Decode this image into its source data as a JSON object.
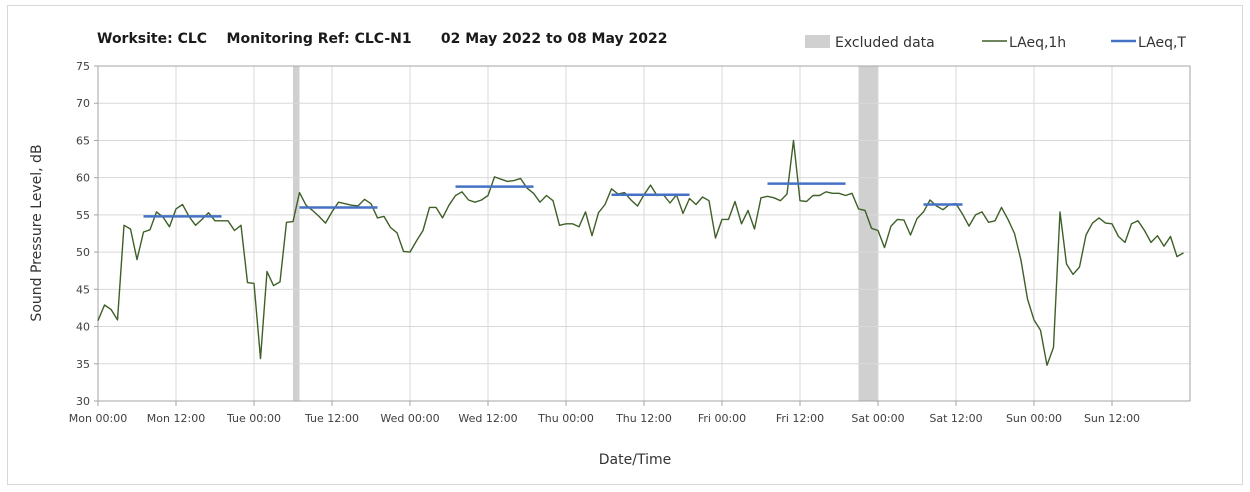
{
  "chart_data": {
    "type": "line",
    "title": "Worksite: CLC    Monitoring Ref: CLC-N1      02 May 2022 to 08 May 2022",
    "xlabel": "Date/Time",
    "ylabel": "Sound Pressure Level, dB",
    "xlim": [
      "2022-05-02 00:00",
      "2022-05-09 00:00"
    ],
    "ylim": [
      30,
      75
    ],
    "y_ticks": [
      30,
      35,
      40,
      45,
      50,
      55,
      60,
      65,
      70,
      75
    ],
    "x_ticks": [
      {
        "at": "2022-05-02 00:00",
        "label": "Mon 00:00"
      },
      {
        "at": "2022-05-02 12:00",
        "label": "Mon 12:00"
      },
      {
        "at": "2022-05-03 00:00",
        "label": "Tue 00:00"
      },
      {
        "at": "2022-05-03 12:00",
        "label": "Tue 12:00"
      },
      {
        "at": "2022-05-04 00:00",
        "label": "Wed 00:00"
      },
      {
        "at": "2022-05-04 12:00",
        "label": "Wed 12:00"
      },
      {
        "at": "2022-05-05 00:00",
        "label": "Thu 00:00"
      },
      {
        "at": "2022-05-05 12:00",
        "label": "Thu 12:00"
      },
      {
        "at": "2022-05-06 00:00",
        "label": "Fri 00:00"
      },
      {
        "at": "2022-05-06 12:00",
        "label": "Fri 12:00"
      },
      {
        "at": "2022-05-07 00:00",
        "label": "Sat 00:00"
      },
      {
        "at": "2022-05-07 12:00",
        "label": "Sat 12:00"
      },
      {
        "at": "2022-05-08 00:00",
        "label": "Sun 00:00"
      },
      {
        "at": "2022-05-08 12:00",
        "label": "Sun 12:00"
      }
    ],
    "grid": true,
    "legend_position": "top-right",
    "colors": {
      "laeq_1h": "#3f5f28",
      "laeq_t": "#4472c4",
      "excluded": "#d0d0d0",
      "grid": "#d9d9d9",
      "axis": "#a6a6a6"
    },
    "excluded_ranges": [
      {
        "start": "2022-05-03 06:00",
        "end": "2022-05-03 07:00",
        "label": "Excluded data"
      },
      {
        "start": "2022-05-06 21:00",
        "end": "2022-05-07 00:00"
      }
    ],
    "series": [
      {
        "name": "LAeq,1h",
        "kind": "line",
        "start": "2022-05-02 00:00",
        "step_hours": 1,
        "values": [
          40.8,
          42.9,
          42.3,
          40.9,
          53.6,
          53.1,
          49.0,
          52.7,
          53.0,
          55.4,
          54.7,
          53.4,
          55.8,
          56.4,
          54.8,
          53.6,
          54.4,
          55.3,
          54.2,
          54.2,
          54.2,
          52.9,
          53.6,
          45.9,
          45.8,
          35.7,
          47.4,
          45.5,
          46.0,
          54.0,
          54.1,
          58.0,
          56.3,
          55.6,
          54.8,
          53.9,
          55.4,
          56.7,
          56.5,
          56.3,
          56.2,
          57.1,
          56.5,
          54.6,
          54.8,
          53.3,
          52.6,
          50.1,
          50.0,
          51.5,
          52.9,
          56.0,
          56.0,
          54.6,
          56.3,
          57.6,
          58.1,
          57.0,
          56.7,
          57.0,
          57.6,
          60.1,
          59.8,
          59.5,
          59.6,
          59.9,
          58.6,
          57.9,
          56.7,
          57.6,
          56.9,
          53.6,
          53.8,
          53.8,
          53.4,
          55.4,
          52.2,
          55.3,
          56.4,
          58.5,
          57.8,
          58.0,
          57.0,
          56.2,
          57.7,
          59.0,
          57.6,
          57.7,
          56.6,
          57.7,
          55.2,
          57.2,
          56.4,
          57.4,
          56.9,
          51.9,
          54.4,
          54.4,
          56.8,
          53.8,
          55.6,
          53.1,
          57.3,
          57.5,
          57.3,
          56.9,
          57.8,
          65.0,
          56.9,
          56.8,
          57.6,
          57.6,
          58.1,
          57.9,
          57.9,
          57.6,
          57.9,
          55.8,
          55.6,
          53.2,
          52.9,
          50.6,
          53.5,
          54.4,
          54.3,
          52.3,
          54.5,
          55.4,
          57.0,
          56.2,
          55.7,
          56.4,
          56.5,
          55.1,
          53.5,
          55.0,
          55.4,
          54.0,
          54.2,
          56.0,
          54.4,
          52.5,
          48.9,
          43.7,
          40.9,
          39.5,
          34.8,
          37.2,
          55.4,
          48.4,
          47.0,
          48.0,
          52.3,
          53.9,
          54.6,
          53.9,
          53.8,
          52.1,
          51.3,
          53.8,
          54.2,
          52.9,
          51.3,
          52.2,
          50.8,
          52.1,
          49.4,
          49.9
        ]
      },
      {
        "name": "LAeq,T",
        "kind": "segments",
        "segments": [
          {
            "start": "2022-05-02 07:00",
            "end": "2022-05-02 19:00",
            "value": 54.8
          },
          {
            "start": "2022-05-03 07:00",
            "end": "2022-05-03 19:00",
            "value": 56.0
          },
          {
            "start": "2022-05-04 07:00",
            "end": "2022-05-04 19:00",
            "value": 58.8
          },
          {
            "start": "2022-05-05 07:00",
            "end": "2022-05-05 19:00",
            "value": 57.7
          },
          {
            "start": "2022-05-06 07:00",
            "end": "2022-05-06 19:00",
            "value": 59.2
          },
          {
            "start": "2022-05-07 07:00",
            "end": "2022-05-07 13:00",
            "value": 56.4
          }
        ]
      }
    ],
    "legend": [
      {
        "label": "Excluded data",
        "kind": "excluded"
      },
      {
        "label": "LAeq,1h",
        "kind": "laeq_1h"
      },
      {
        "label": "LAeq,T",
        "kind": "laeq_t"
      }
    ]
  }
}
